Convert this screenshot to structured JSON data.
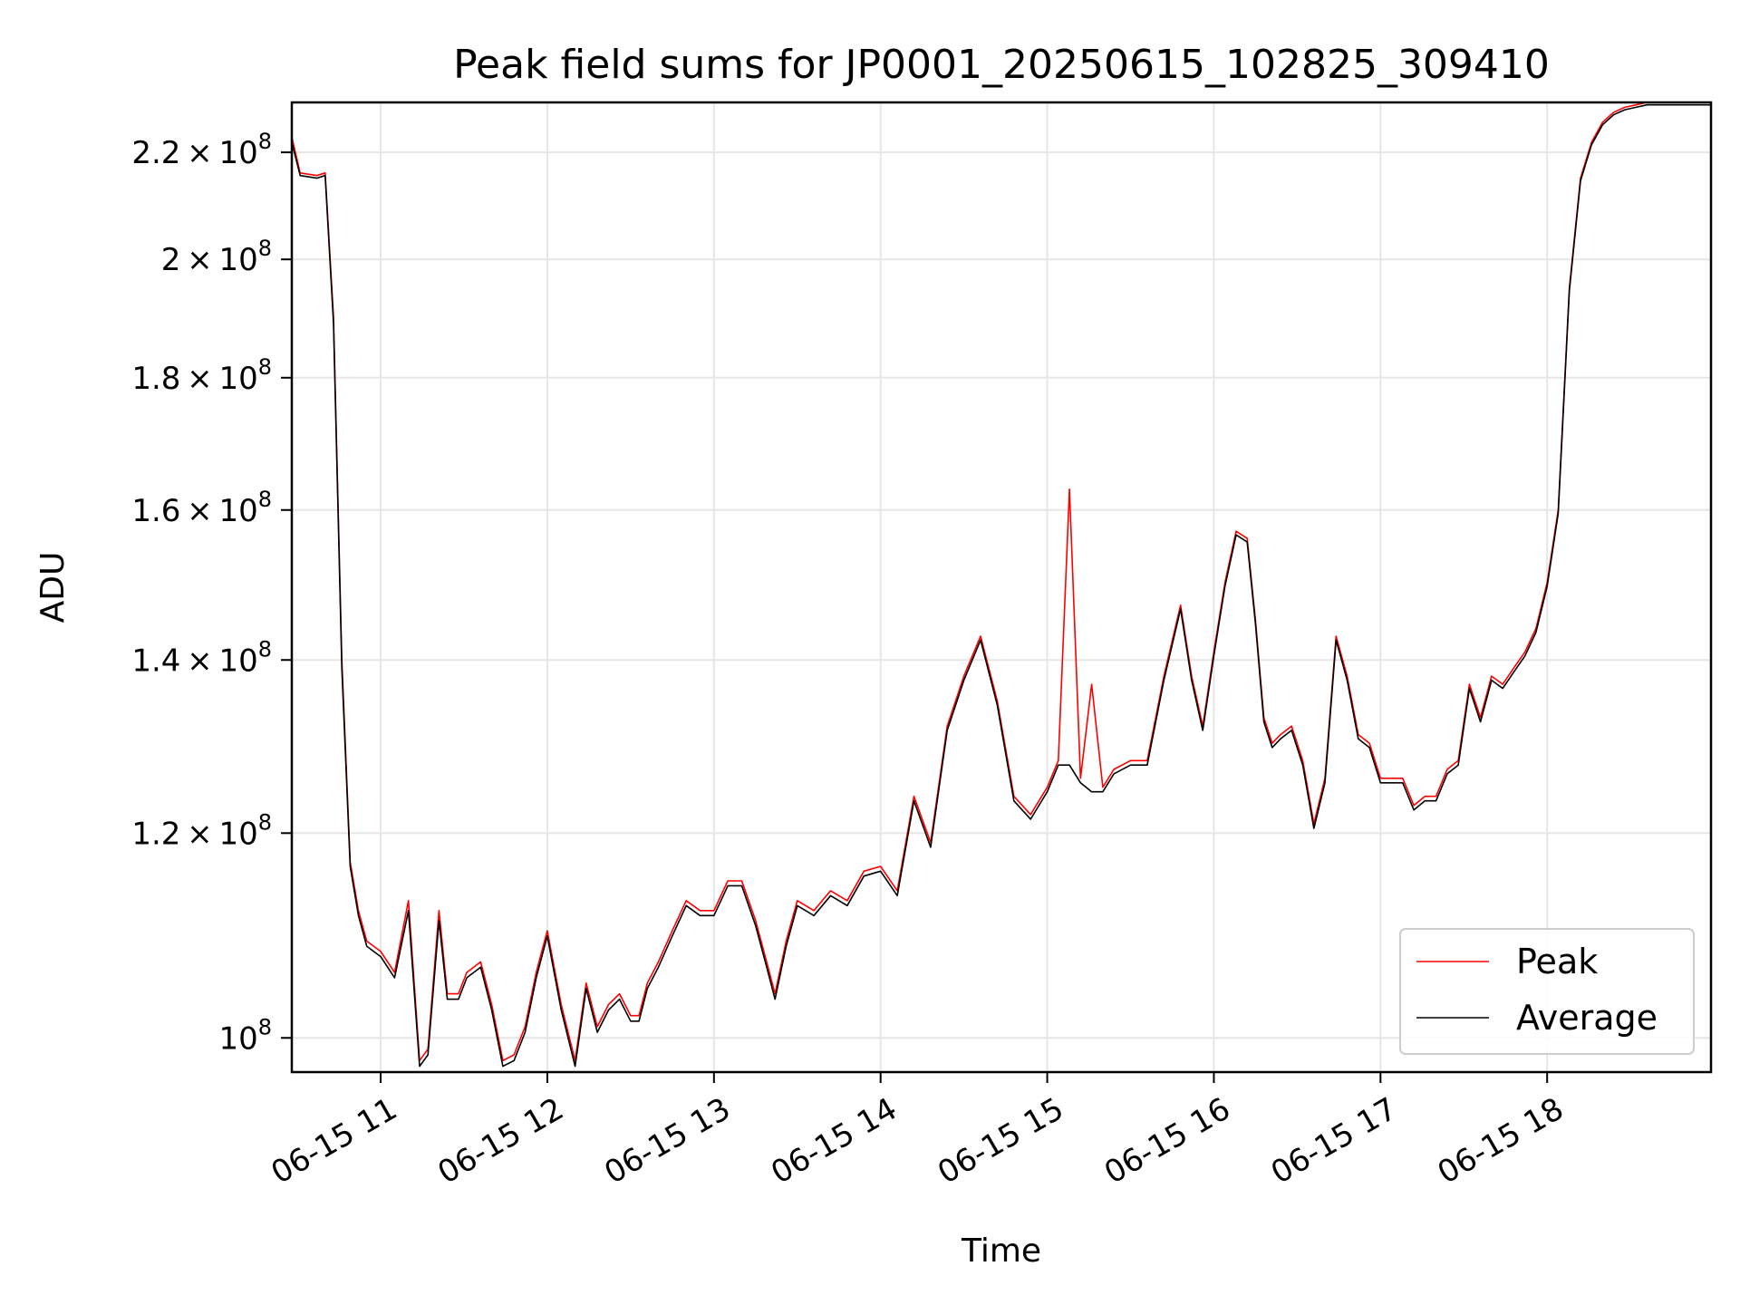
{
  "chart_data": {
    "type": "line",
    "title": "Peak field sums for JP0001_20250615_102825_309410",
    "xlabel": "Time",
    "ylabel": "ADU",
    "y_scale": "log",
    "x_range": [
      "06-15 10:28",
      "06-15 18:59"
    ],
    "ylim": [
      97000000,
      230000000
    ],
    "grid": true,
    "legend_position": "lower-right",
    "x_ticks": [
      "06-15 11",
      "06-15 12",
      "06-15 13",
      "06-15 14",
      "06-15 15",
      "06-15 16",
      "06-15 17",
      "06-15 18"
    ],
    "x_tick_times": [
      "06-15 11:00",
      "06-15 12:00",
      "06-15 13:00",
      "06-15 14:00",
      "06-15 15:00",
      "06-15 16:00",
      "06-15 17:00",
      "06-15 18:00"
    ],
    "y_ticks": [
      {
        "value": 100000000,
        "mantissa": "",
        "exp": "8"
      },
      {
        "value": 120000000,
        "mantissa": "1.2",
        "exp": "8"
      },
      {
        "value": 140000000,
        "mantissa": "1.4",
        "exp": "8"
      },
      {
        "value": 160000000,
        "mantissa": "1.6",
        "exp": "8"
      },
      {
        "value": 180000000,
        "mantissa": "1.8",
        "exp": "8"
      },
      {
        "value": 200000000,
        "mantissa": "2",
        "exp": "8"
      },
      {
        "value": 220000000,
        "mantissa": "2.2",
        "exp": "8"
      }
    ],
    "x": [
      "06-15 10:28",
      "06-15 10:31",
      "06-15 10:37",
      "06-15 10:40",
      "06-15 10:43",
      "06-15 10:46",
      "06-15 10:49",
      "06-15 10:52",
      "06-15 10:55",
      "06-15 11:00",
      "06-15 11:05",
      "06-15 11:10",
      "06-15 11:14",
      "06-15 11:17",
      "06-15 11:21",
      "06-15 11:24",
      "06-15 11:28",
      "06-15 11:31",
      "06-15 11:36",
      "06-15 11:40",
      "06-15 11:44",
      "06-15 11:48",
      "06-15 11:52",
      "06-15 11:56",
      "06-15 12:00",
      "06-15 12:05",
      "06-15 12:10",
      "06-15 12:14",
      "06-15 12:18",
      "06-15 12:22",
      "06-15 12:26",
      "06-15 12:30",
      "06-15 12:33",
      "06-15 12:36",
      "06-15 12:40",
      "06-15 12:45",
      "06-15 12:50",
      "06-15 12:55",
      "06-15 13:00",
      "06-15 13:05",
      "06-15 13:10",
      "06-15 13:15",
      "06-15 13:19",
      "06-15 13:22",
      "06-15 13:26",
      "06-15 13:30",
      "06-15 13:36",
      "06-15 13:42",
      "06-15 13:48",
      "06-15 13:54",
      "06-15 14:00",
      "06-15 14:06",
      "06-15 14:12",
      "06-15 14:18",
      "06-15 14:24",
      "06-15 14:30",
      "06-15 14:36",
      "06-15 14:42",
      "06-15 14:48",
      "06-15 14:54",
      "06-15 15:00",
      "06-15 15:04",
      "06-15 15:08",
      "06-15 15:12",
      "06-15 15:16",
      "06-15 15:20",
      "06-15 15:24",
      "06-15 15:30",
      "06-15 15:36",
      "06-15 15:42",
      "06-15 15:48",
      "06-15 15:52",
      "06-15 15:56",
      "06-15 16:00",
      "06-15 16:04",
      "06-15 16:08",
      "06-15 16:12",
      "06-15 16:15",
      "06-15 16:18",
      "06-15 16:21",
      "06-15 16:24",
      "06-15 16:28",
      "06-15 16:32",
      "06-15 16:36",
      "06-15 16:40",
      "06-15 16:44",
      "06-15 16:48",
      "06-15 16:52",
      "06-15 16:56",
      "06-15 17:00",
      "06-15 17:04",
      "06-15 17:08",
      "06-15 17:12",
      "06-15 17:16",
      "06-15 17:20",
      "06-15 17:24",
      "06-15 17:28",
      "06-15 17:32",
      "06-15 17:36",
      "06-15 17:40",
      "06-15 17:44",
      "06-15 17:48",
      "06-15 17:52",
      "06-15 17:56",
      "06-15 18:00",
      "06-15 18:04",
      "06-15 18:08",
      "06-15 18:12",
      "06-15 18:16",
      "06-15 18:20",
      "06-15 18:24",
      "06-15 18:28",
      "06-15 18:32",
      "06-15 18:36",
      "06-15 18:40",
      "06-15 18:44",
      "06-15 18:48",
      "06-15 18:52",
      "06-15 18:56",
      "06-15 18:59"
    ],
    "series": [
      {
        "name": "Peak",
        "color": "#ff0000",
        "values": [
          223000000,
          216000000,
          215500000,
          216000000,
          190000000,
          140000000,
          117000000,
          112000000,
          109000000,
          108000000,
          106000000,
          113000000,
          98000000,
          99000000,
          112000000,
          104000000,
          104000000,
          106000000,
          107000000,
          103000000,
          98000000,
          98500000,
          101000000,
          106000000,
          110000000,
          103000000,
          98000000,
          105000000,
          101000000,
          103000000,
          104000000,
          102000000,
          102000000,
          105000000,
          107000000,
          110000000,
          113000000,
          112000000,
          112000000,
          115000000,
          115000000,
          111000000,
          107000000,
          104000000,
          109000000,
          113000000,
          112000000,
          114000000,
          113000000,
          116000000,
          116500000,
          114000000,
          124000000,
          119000000,
          132000000,
          138000000,
          143000000,
          135000000,
          124000000,
          122000000,
          125000000,
          128000000,
          163000000,
          126000000,
          137000000,
          125000000,
          127000000,
          128000000,
          128000000,
          138000000,
          147000000,
          138000000,
          132000000,
          141000000,
          150000000,
          157000000,
          156000000,
          145000000,
          133000000,
          130000000,
          131000000,
          132000000,
          128000000,
          121000000,
          126000000,
          143000000,
          138000000,
          131000000,
          130000000,
          126000000,
          126000000,
          126000000,
          123000000,
          124000000,
          124000000,
          127000000,
          128000000,
          137000000,
          133000000,
          138000000,
          137000000,
          139000000,
          141000000,
          144000000,
          150000000,
          160000000,
          195000000,
          215000000,
          222000000,
          226000000,
          228000000,
          229000000,
          229500000,
          230000000,
          230000000,
          230000000,
          230000000,
          230000000,
          230000000,
          230000000
        ]
      },
      {
        "name": "Average",
        "color": "#000000",
        "values": [
          222000000,
          215500000,
          215000000,
          215500000,
          189000000,
          139000000,
          116500000,
          111500000,
          108500000,
          107500000,
          105500000,
          112000000,
          97500000,
          98500000,
          111000000,
          103500000,
          103500000,
          105500000,
          106500000,
          102500000,
          97500000,
          98000000,
          100500000,
          105500000,
          109500000,
          102500000,
          97500000,
          104500000,
          100500000,
          102500000,
          103500000,
          101500000,
          101500000,
          104500000,
          106500000,
          109500000,
          112500000,
          111500000,
          111500000,
          114500000,
          114500000,
          110500000,
          106500000,
          103500000,
          108500000,
          112500000,
          111500000,
          113500000,
          112500000,
          115500000,
          116000000,
          113500000,
          123500000,
          118500000,
          131500000,
          137500000,
          142500000,
          134500000,
          123500000,
          121500000,
          124500000,
          127500000,
          127500000,
          125500000,
          124500000,
          124500000,
          126500000,
          127500000,
          127500000,
          137500000,
          146500000,
          137500000,
          131500000,
          140500000,
          149500000,
          156500000,
          155500000,
          144500000,
          132500000,
          129500000,
          130500000,
          131500000,
          127500000,
          120500000,
          125500000,
          142500000,
          137500000,
          130500000,
          129500000,
          125500000,
          125500000,
          125500000,
          122500000,
          123500000,
          123500000,
          126500000,
          127500000,
          136500000,
          132500000,
          137500000,
          136500000,
          138500000,
          140500000,
          143500000,
          149500000,
          159500000,
          194500000,
          214500000,
          221500000,
          225500000,
          227500000,
          228500000,
          229000000,
          229500000,
          229500000,
          229500000,
          229500000,
          229500000,
          229500000,
          229500000
        ]
      }
    ]
  }
}
